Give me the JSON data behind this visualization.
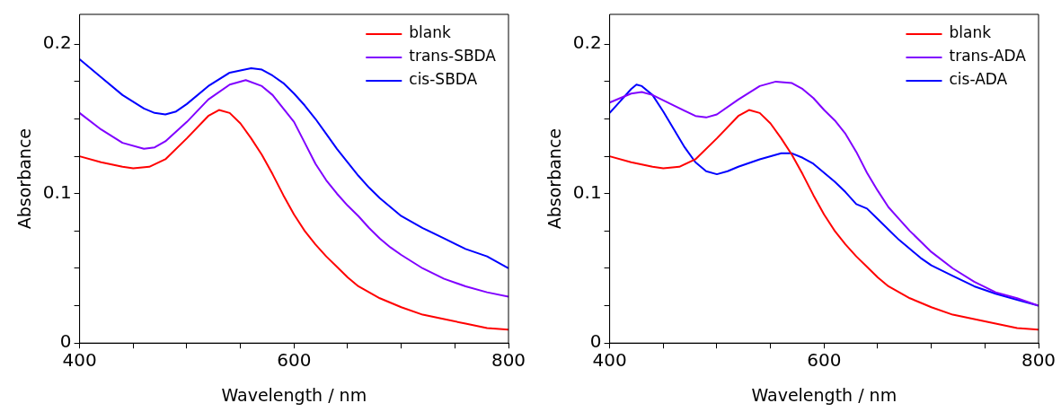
{
  "chart_data": [
    {
      "type": "line",
      "xlabel": "Wavelength / nm",
      "ylabel": "Absorbance",
      "legend": "top right",
      "grid": false,
      "marker": "none",
      "line_style": "solid",
      "xlim": [
        400,
        800
      ],
      "ylim": [
        0,
        0.22
      ],
      "xticks": [
        400,
        {
          "value": 450,
          "label": null
        },
        {
          "value": 500,
          "label": null
        },
        {
          "value": 550,
          "label": null
        },
        600,
        {
          "value": 650,
          "label": null
        },
        {
          "value": 700,
          "label": null
        },
        {
          "value": 750,
          "label": null
        },
        800
      ],
      "yticks": [
        0,
        {
          "value": 0.025,
          "label": null
        },
        {
          "value": 0.05,
          "label": null
        },
        {
          "value": 0.075,
          "label": null
        },
        0.1,
        {
          "value": 0.125,
          "label": null
        },
        {
          "value": 0.15,
          "label": null
        },
        {
          "value": 0.175,
          "label": null
        },
        0.2
      ],
      "series": [
        {
          "name": "blank",
          "color": "#ff0000",
          "x": [
            400,
            420,
            440,
            450,
            465,
            480,
            500,
            520,
            530,
            540,
            550,
            560,
            570,
            580,
            590,
            600,
            610,
            620,
            630,
            640,
            650,
            660,
            670,
            680,
            690,
            700,
            720,
            740,
            760,
            780,
            800
          ],
          "values": [
            0.125,
            0.121,
            0.118,
            0.117,
            0.118,
            0.123,
            0.137,
            0.152,
            0.156,
            0.154,
            0.147,
            0.137,
            0.126,
            0.113,
            0.099,
            0.086,
            0.075,
            0.066,
            0.058,
            0.051,
            0.044,
            0.038,
            0.034,
            0.03,
            0.027,
            0.024,
            0.019,
            0.016,
            0.013,
            0.01,
            0.009
          ]
        },
        {
          "name": "trans-SBDA",
          "color": "#8000ff",
          "x": [
            400,
            420,
            440,
            460,
            470,
            480,
            500,
            520,
            540,
            555,
            570,
            580,
            590,
            600,
            610,
            620,
            630,
            640,
            650,
            660,
            670,
            680,
            690,
            700,
            720,
            740,
            760,
            780,
            800
          ],
          "values": [
            0.154,
            0.143,
            0.134,
            0.13,
            0.131,
            0.135,
            0.148,
            0.163,
            0.173,
            0.176,
            0.172,
            0.166,
            0.157,
            0.148,
            0.134,
            0.12,
            0.109,
            0.1,
            0.092,
            0.085,
            0.077,
            0.07,
            0.064,
            0.059,
            0.05,
            0.043,
            0.038,
            0.034,
            0.031
          ]
        },
        {
          "name": "cis-SBDA",
          "color": "#0000ff",
          "x": [
            400,
            420,
            440,
            460,
            470,
            480,
            490,
            500,
            520,
            540,
            560,
            570,
            580,
            590,
            600,
            610,
            620,
            630,
            640,
            650,
            660,
            670,
            680,
            690,
            700,
            720,
            740,
            760,
            780,
            800
          ],
          "values": [
            0.19,
            0.178,
            0.166,
            0.157,
            0.154,
            0.153,
            0.155,
            0.16,
            0.172,
            0.181,
            0.184,
            0.183,
            0.179,
            0.174,
            0.167,
            0.159,
            0.15,
            0.14,
            0.13,
            0.121,
            0.112,
            0.104,
            0.097,
            0.091,
            0.085,
            0.077,
            0.07,
            0.063,
            0.058,
            0.05
          ]
        }
      ]
    },
    {
      "type": "line",
      "xlabel": "Wavelength / nm",
      "ylabel": "Absorbance",
      "legend": "top right",
      "grid": false,
      "marker": "none",
      "line_style": "solid",
      "xlim": [
        400,
        800
      ],
      "ylim": [
        0,
        0.22
      ],
      "xticks": [
        400,
        {
          "value": 450,
          "label": null
        },
        {
          "value": 500,
          "label": null
        },
        {
          "value": 550,
          "label": null
        },
        600,
        {
          "value": 650,
          "label": null
        },
        {
          "value": 700,
          "label": null
        },
        {
          "value": 750,
          "label": null
        },
        800
      ],
      "yticks": [
        0,
        {
          "value": 0.025,
          "label": null
        },
        {
          "value": 0.05,
          "label": null
        },
        {
          "value": 0.075,
          "label": null
        },
        0.1,
        {
          "value": 0.125,
          "label": null
        },
        {
          "value": 0.15,
          "label": null
        },
        {
          "value": 0.175,
          "label": null
        },
        0.2
      ],
      "series": [
        {
          "name": "blank",
          "color": "#ff0000",
          "x": [
            400,
            420,
            440,
            450,
            465,
            480,
            500,
            520,
            530,
            540,
            550,
            560,
            570,
            580,
            590,
            600,
            610,
            620,
            630,
            640,
            650,
            660,
            670,
            680,
            690,
            700,
            720,
            740,
            760,
            780,
            800
          ],
          "values": [
            0.125,
            0.121,
            0.118,
            0.117,
            0.118,
            0.123,
            0.137,
            0.152,
            0.156,
            0.154,
            0.147,
            0.137,
            0.126,
            0.113,
            0.099,
            0.086,
            0.075,
            0.066,
            0.058,
            0.051,
            0.044,
            0.038,
            0.034,
            0.03,
            0.027,
            0.024,
            0.019,
            0.016,
            0.013,
            0.01,
            0.009
          ]
        },
        {
          "name": "trans-ADA",
          "color": "#8000ff",
          "x": [
            400,
            410,
            420,
            430,
            440,
            460,
            480,
            490,
            500,
            520,
            540,
            555,
            570,
            580,
            590,
            600,
            610,
            620,
            630,
            640,
            650,
            660,
            670,
            680,
            690,
            700,
            720,
            740,
            760,
            780,
            800
          ],
          "values": [
            0.161,
            0.164,
            0.167,
            0.168,
            0.166,
            0.159,
            0.152,
            0.151,
            0.153,
            0.163,
            0.172,
            0.175,
            0.174,
            0.17,
            0.164,
            0.156,
            0.149,
            0.14,
            0.128,
            0.114,
            0.102,
            0.091,
            0.083,
            0.075,
            0.068,
            0.061,
            0.05,
            0.041,
            0.034,
            0.03,
            0.025
          ]
        },
        {
          "name": "cis-ADA",
          "color": "#0000ff",
          "x": [
            400,
            410,
            420,
            425,
            430,
            440,
            450,
            460,
            470,
            480,
            490,
            500,
            510,
            520,
            540,
            560,
            570,
            580,
            590,
            600,
            610,
            620,
            630,
            640,
            650,
            660,
            670,
            680,
            690,
            700,
            720,
            740,
            760,
            780,
            800
          ],
          "values": [
            0.154,
            0.162,
            0.17,
            0.173,
            0.172,
            0.166,
            0.155,
            0.143,
            0.131,
            0.121,
            0.115,
            0.113,
            0.115,
            0.118,
            0.123,
            0.127,
            0.127,
            0.124,
            0.12,
            0.114,
            0.108,
            0.101,
            0.093,
            0.09,
            0.083,
            0.076,
            0.069,
            0.063,
            0.057,
            0.052,
            0.045,
            0.038,
            0.033,
            0.029,
            0.025
          ]
        }
      ]
    }
  ]
}
